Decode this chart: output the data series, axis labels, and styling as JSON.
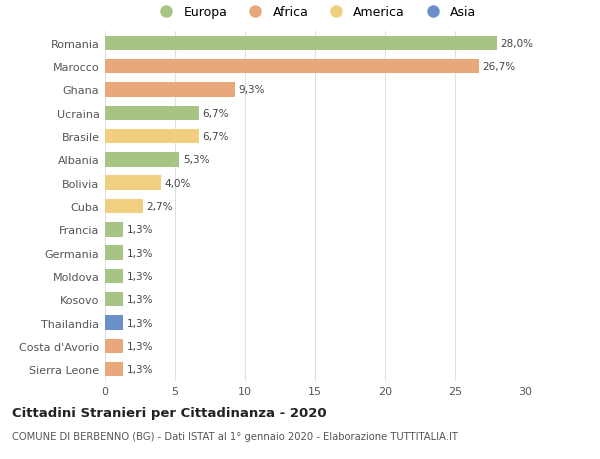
{
  "countries": [
    "Romania",
    "Marocco",
    "Ghana",
    "Ucraina",
    "Brasile",
    "Albania",
    "Bolivia",
    "Cuba",
    "Francia",
    "Germania",
    "Moldova",
    "Kosovo",
    "Thailandia",
    "Costa d'Avorio",
    "Sierra Leone"
  ],
  "values": [
    28.0,
    26.7,
    9.3,
    6.7,
    6.7,
    5.3,
    4.0,
    2.7,
    1.3,
    1.3,
    1.3,
    1.3,
    1.3,
    1.3,
    1.3
  ],
  "labels": [
    "28,0%",
    "26,7%",
    "9,3%",
    "6,7%",
    "6,7%",
    "5,3%",
    "4,0%",
    "2,7%",
    "1,3%",
    "1,3%",
    "1,3%",
    "1,3%",
    "1,3%",
    "1,3%",
    "1,3%"
  ],
  "continents": [
    "Europa",
    "Africa",
    "Africa",
    "Europa",
    "America",
    "Europa",
    "America",
    "America",
    "Europa",
    "Europa",
    "Europa",
    "Europa",
    "Asia",
    "Africa",
    "Africa"
  ],
  "colors": {
    "Europa": "#a8c484",
    "Africa": "#e8a87c",
    "America": "#f0d080",
    "Asia": "#6b8fc9"
  },
  "title": "Cittadini Stranieri per Cittadinanza - 2020",
  "subtitle": "COMUNE DI BERBENNO (BG) - Dati ISTAT al 1° gennaio 2020 - Elaborazione TUTTITALIA.IT",
  "xlim": [
    0,
    30
  ],
  "xticks": [
    0,
    5,
    10,
    15,
    20,
    25,
    30
  ],
  "background_color": "#ffffff",
  "grid_color": "#e0e0e0",
  "legend_order": [
    "Europa",
    "Africa",
    "America",
    "Asia"
  ]
}
